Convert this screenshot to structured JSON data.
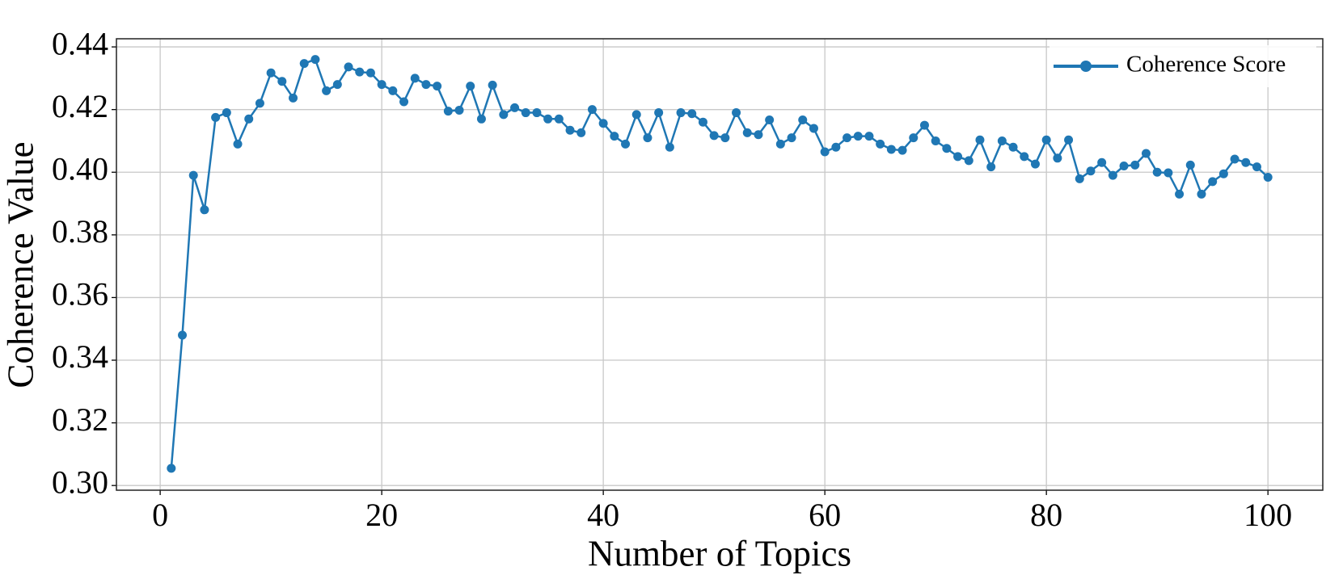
{
  "chart_data": {
    "type": "line",
    "xlabel": "Number of Topics",
    "ylabel": "Coherence Value",
    "x": [
      1,
      2,
      3,
      4,
      5,
      6,
      7,
      8,
      9,
      10,
      11,
      12,
      13,
      14,
      15,
      16,
      17,
      18,
      19,
      20,
      21,
      22,
      23,
      24,
      25,
      26,
      27,
      28,
      29,
      30,
      31,
      32,
      33,
      34,
      35,
      36,
      37,
      38,
      39,
      40,
      41,
      42,
      43,
      44,
      45,
      46,
      47,
      48,
      49,
      50,
      51,
      52,
      53,
      54,
      55,
      56,
      57,
      58,
      59,
      60,
      61,
      62,
      63,
      64,
      65,
      66,
      67,
      68,
      69,
      70,
      71,
      72,
      73,
      74,
      75,
      76,
      77,
      78,
      79,
      80,
      81,
      82,
      83,
      84,
      85,
      86,
      87,
      88,
      89,
      90,
      91,
      92,
      93,
      94,
      95,
      96,
      97,
      98,
      99,
      100
    ],
    "series": [
      {
        "name": "Coherence Score",
        "color": "#1f77b4",
        "values": [
          0.3055,
          0.348,
          0.399,
          0.388,
          0.4175,
          0.419,
          0.409,
          0.417,
          0.422,
          0.4317,
          0.429,
          0.4237,
          0.4347,
          0.436,
          0.426,
          0.428,
          0.4336,
          0.432,
          0.4317,
          0.428,
          0.426,
          0.4225,
          0.43,
          0.428,
          0.4275,
          0.4195,
          0.4198,
          0.4275,
          0.417,
          0.4278,
          0.4184,
          0.4206,
          0.419,
          0.419,
          0.417,
          0.417,
          0.4134,
          0.4126,
          0.42,
          0.4156,
          0.4115,
          0.409,
          0.4184,
          0.411,
          0.419,
          0.408,
          0.419,
          0.4187,
          0.416,
          0.4117,
          0.411,
          0.419,
          0.4126,
          0.412,
          0.4167,
          0.409,
          0.411,
          0.4167,
          0.414,
          0.4065,
          0.408,
          0.411,
          0.4115,
          0.4115,
          0.409,
          0.4073,
          0.407,
          0.411,
          0.415,
          0.41,
          0.4076,
          0.405,
          0.4037,
          0.4103,
          0.4017,
          0.41,
          0.408,
          0.405,
          0.4026,
          0.4103,
          0.4045,
          0.4103,
          0.3979,
          0.4004,
          0.4031,
          0.399,
          0.402,
          0.4023,
          0.406,
          0.4,
          0.3998,
          0.393,
          0.4023,
          0.393,
          0.397,
          0.3995,
          0.4042,
          0.4031,
          0.4017,
          0.3984
        ]
      }
    ],
    "xlim": [
      -3.95,
      104.95
    ],
    "xticks": [
      0,
      20,
      40,
      60,
      80,
      100
    ],
    "ylim": [
      0.2985,
      0.4426
    ],
    "yticks": [
      {
        "value": 0.3,
        "label": "0.30"
      },
      0.32,
      0.34,
      0.36,
      0.38,
      {
        "value": 0.4,
        "label": "0.40"
      },
      0.42,
      0.44
    ],
    "grid": true,
    "legend": "upper right"
  }
}
